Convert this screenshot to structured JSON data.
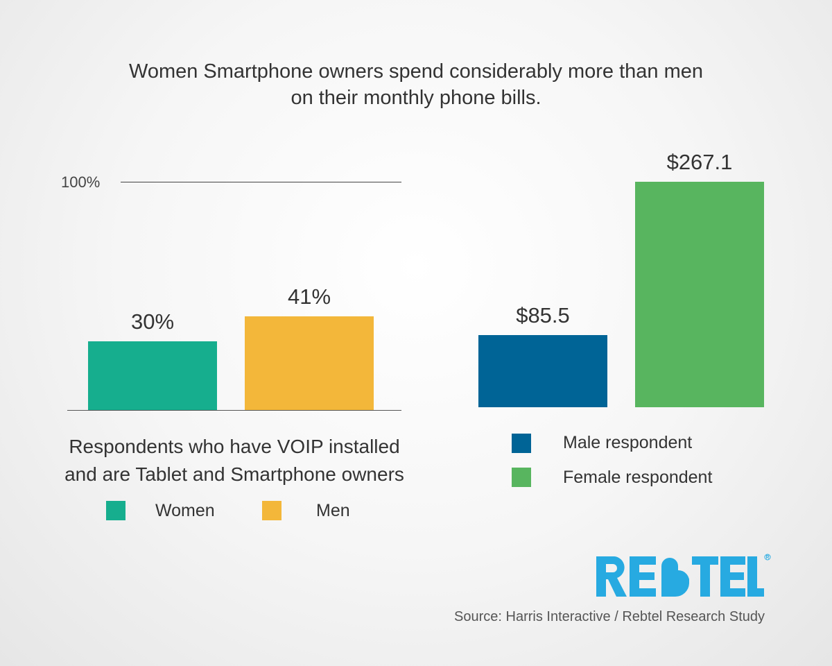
{
  "title_line1": "Women Smartphone owners spend considerably more than men",
  "title_line2": "on their monthly phone bills.",
  "chart_data": [
    {
      "type": "bar",
      "title": "Respondents who have VOIP installed and are Tablet and Smartphone owners",
      "title_line1": "Respondents who have VOIP installed",
      "title_line2": "and are Tablet and Smartphone owners",
      "categories": [
        "Women",
        "Men"
      ],
      "values": [
        30,
        41
      ],
      "data_labels": [
        "30%",
        "41%"
      ],
      "colors": [
        "#16ae8e",
        "#f3b73a"
      ],
      "ylim": [
        0,
        100
      ],
      "tick_label": "100%",
      "legend": [
        "Women",
        "Men"
      ],
      "legend_placement": "bottom"
    },
    {
      "type": "bar",
      "categories": [
        "Male respondent",
        "Female respondent"
      ],
      "values": [
        85.5,
        267.1
      ],
      "data_labels": [
        "$85.5",
        "$267.1"
      ],
      "colors": [
        "#006496",
        "#58b55f"
      ],
      "legend": [
        "Male respondent",
        "Female respondent"
      ],
      "legend_placement": "bottom"
    }
  ],
  "logo_text": "REBTEL",
  "logo_color": "#27aae1",
  "source": "Source: Harris Interactive / Rebtel Research Study"
}
